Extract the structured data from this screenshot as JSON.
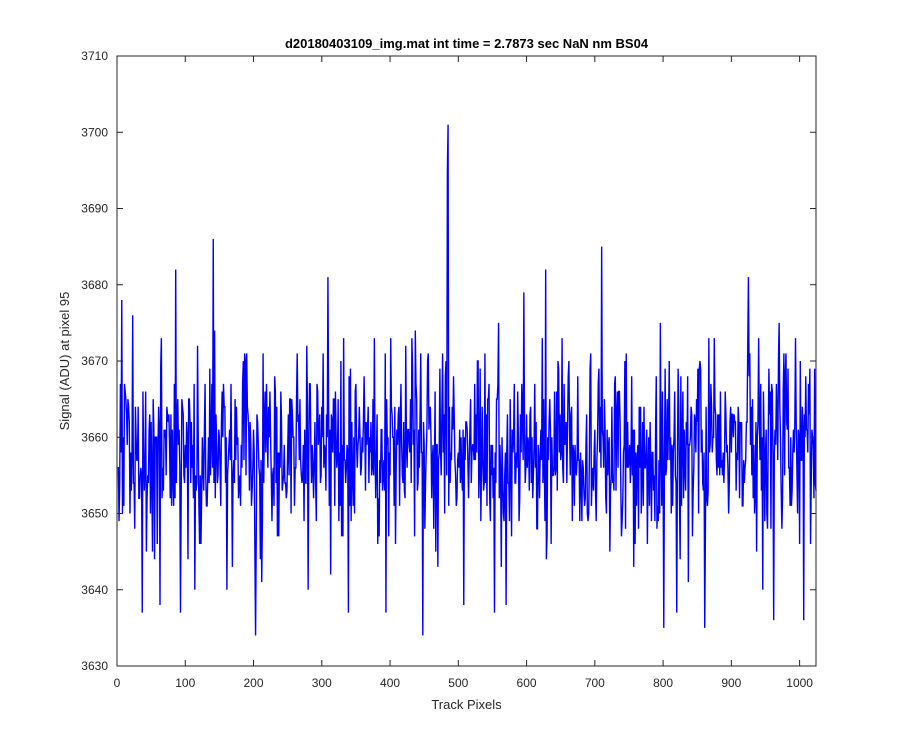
{
  "chart_data": {
    "type": "line",
    "title": "d20180403109_img.mat int time = 2.7873 sec  NaN nm BS04",
    "xlabel": "Track Pixels",
    "ylabel": "Signal (ADU) at pixel 95",
    "xlim": [
      0,
      1024
    ],
    "ylim": [
      3630,
      3710
    ],
    "xticks": [
      0,
      100,
      200,
      300,
      400,
      500,
      600,
      700,
      800,
      900,
      1000
    ],
    "yticks": [
      3630,
      3640,
      3650,
      3660,
      3670,
      3680,
      3690,
      3700,
      3710
    ],
    "grid": false,
    "legend": "none",
    "series": [
      {
        "color": "#0000ff",
        "n_points": 1024,
        "baseline": 3658,
        "noise_sd": 6.5,
        "seed": 20180403,
        "clip": [
          3634,
          3701
        ],
        "notable_points": [
          {
            "x": 484,
            "y": 3701
          },
          {
            "x": 483,
            "y": 3695
          },
          {
            "x": 140,
            "y": 3686
          },
          {
            "x": 709,
            "y": 3685
          },
          {
            "x": 85,
            "y": 3682
          },
          {
            "x": 627,
            "y": 3682
          },
          {
            "x": 924,
            "y": 3681
          },
          {
            "x": 308,
            "y": 3681
          },
          {
            "x": 202,
            "y": 3634
          },
          {
            "x": 447,
            "y": 3634
          },
          {
            "x": 338,
            "y": 3637
          },
          {
            "x": 393,
            "y": 3637
          },
          {
            "x": 92,
            "y": 3637
          },
          {
            "x": 552,
            "y": 3637
          },
          {
            "x": 62,
            "y": 3638
          },
          {
            "x": 800,
            "y": 3635
          },
          {
            "x": 860,
            "y": 3635
          },
          {
            "x": 1005,
            "y": 3636
          },
          {
            "x": 160,
            "y": 3640
          }
        ]
      }
    ]
  }
}
